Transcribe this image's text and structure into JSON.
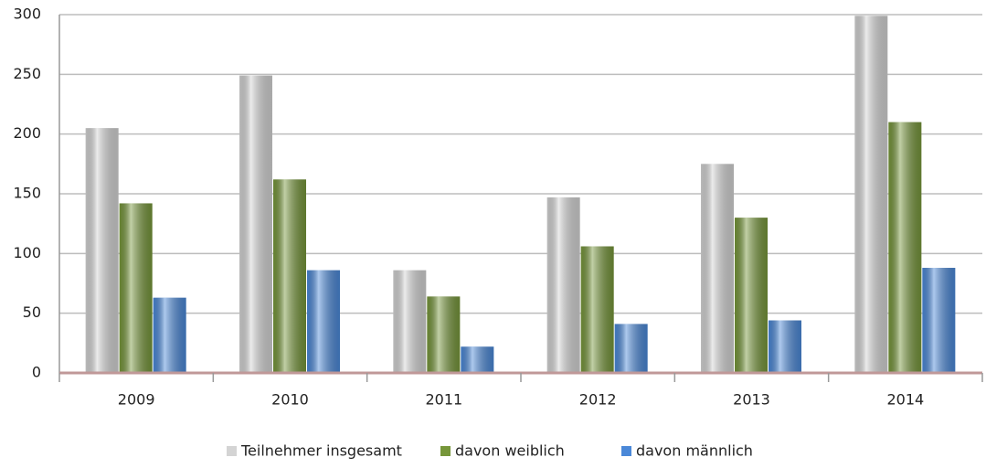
{
  "chart_data": {
    "type": "bar",
    "categories": [
      "2009",
      "2010",
      "2011",
      "2012",
      "2013",
      "2014"
    ],
    "series": [
      {
        "name": "Teilnehmer insgesamt",
        "color": "#d4d4d4",
        "values": [
          205,
          249,
          86,
          147,
          175,
          299
        ]
      },
      {
        "name": "davon weiblich",
        "color": "#76963a",
        "values": [
          142,
          162,
          64,
          106,
          130,
          210
        ]
      },
      {
        "name": "davon männlich",
        "color": "#4a88d8",
        "values": [
          63,
          86,
          22,
          41,
          44,
          88
        ]
      }
    ],
    "ylim": [
      0,
      300
    ],
    "yticks": [
      0,
      50,
      100,
      150,
      200,
      250,
      300
    ],
    "grid": true,
    "legend": "bottom"
  }
}
